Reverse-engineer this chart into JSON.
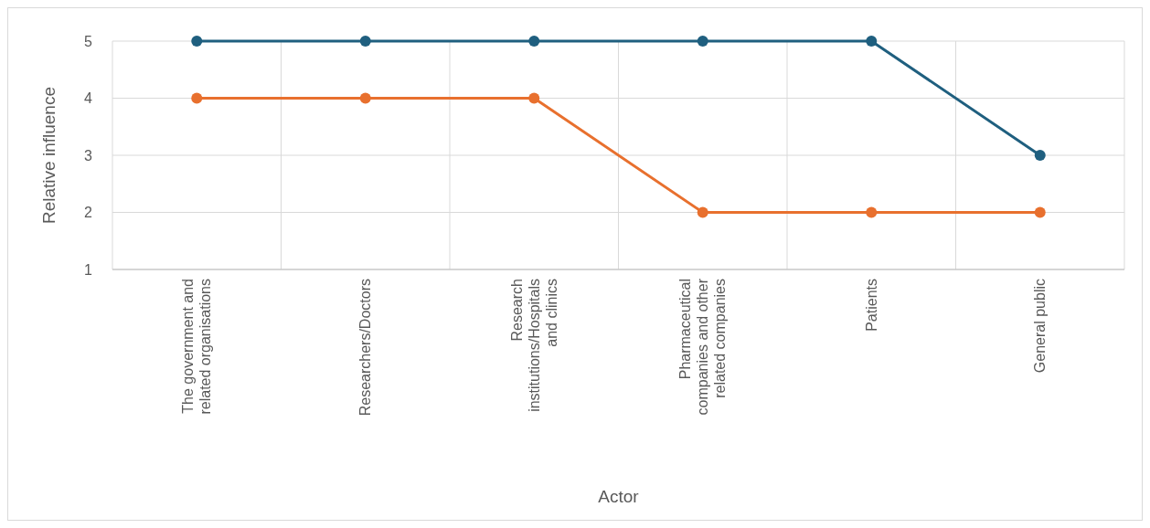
{
  "chart_data": {
    "type": "line",
    "xlabel": "Actor",
    "ylabel": "Relative influence",
    "categories": [
      "The government and related organisations",
      "Researchers/Doctors",
      "Research institutions/Hospitals and clinics",
      "Pharmaceutical companies and other related companies",
      "Patients",
      "General public"
    ],
    "series": [
      {
        "color": "#1f5f7f",
        "values": [
          5,
          5,
          5,
          5,
          5,
          3
        ]
      },
      {
        "color": "#e8702e",
        "values": [
          4,
          4,
          4,
          2,
          2,
          2
        ]
      }
    ],
    "ylim": [
      1,
      5
    ],
    "yticks": [
      1,
      2,
      3,
      4,
      5
    ],
    "grid": true,
    "marker": "circle",
    "line_style": "solid"
  }
}
